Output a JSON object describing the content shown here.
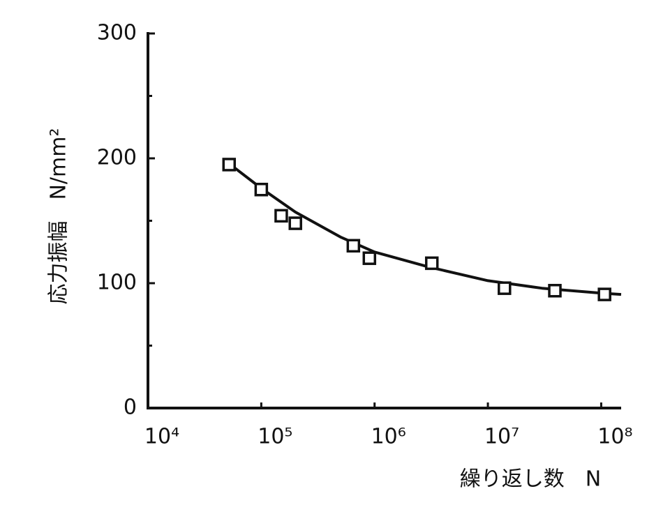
{
  "chart_data": {
    "type": "scatter",
    "xlabel": "繰り返し数　N",
    "ylabel": "応力振幅　N/mm²",
    "xscale": "log",
    "xlim": [
      10000,
      150000000
    ],
    "xticks": [
      {
        "value": 10000,
        "label": "10⁴"
      },
      {
        "value": 100000,
        "label": "10⁵"
      },
      {
        "value": 1000000,
        "label": "10⁶"
      },
      {
        "value": 10000000,
        "label": "10⁷"
      },
      {
        "value": 100000000,
        "label": "10⁸"
      }
    ],
    "ylim": [
      0,
      300
    ],
    "yticks": [
      0,
      100,
      200,
      300
    ],
    "yminorticks": [
      50,
      150,
      250
    ],
    "color": "#111111",
    "series": [
      {
        "marker": "square",
        "x": [
          52000,
          100000,
          150000,
          200000,
          650000,
          900000,
          3200000,
          14000000,
          39000000,
          107000000
        ],
        "values": [
          195,
          175,
          154,
          148,
          130,
          120,
          116,
          96,
          94,
          91
        ]
      },
      {
        "line": true,
        "x": [
          50000,
          100000,
          200000,
          500000,
          1000000,
          3000000,
          10000000,
          30000000,
          100000000,
          150000000
        ],
        "values": [
          197,
          176,
          157,
          137,
          125,
          113,
          102,
          96,
          92,
          91
        ]
      }
    ]
  }
}
